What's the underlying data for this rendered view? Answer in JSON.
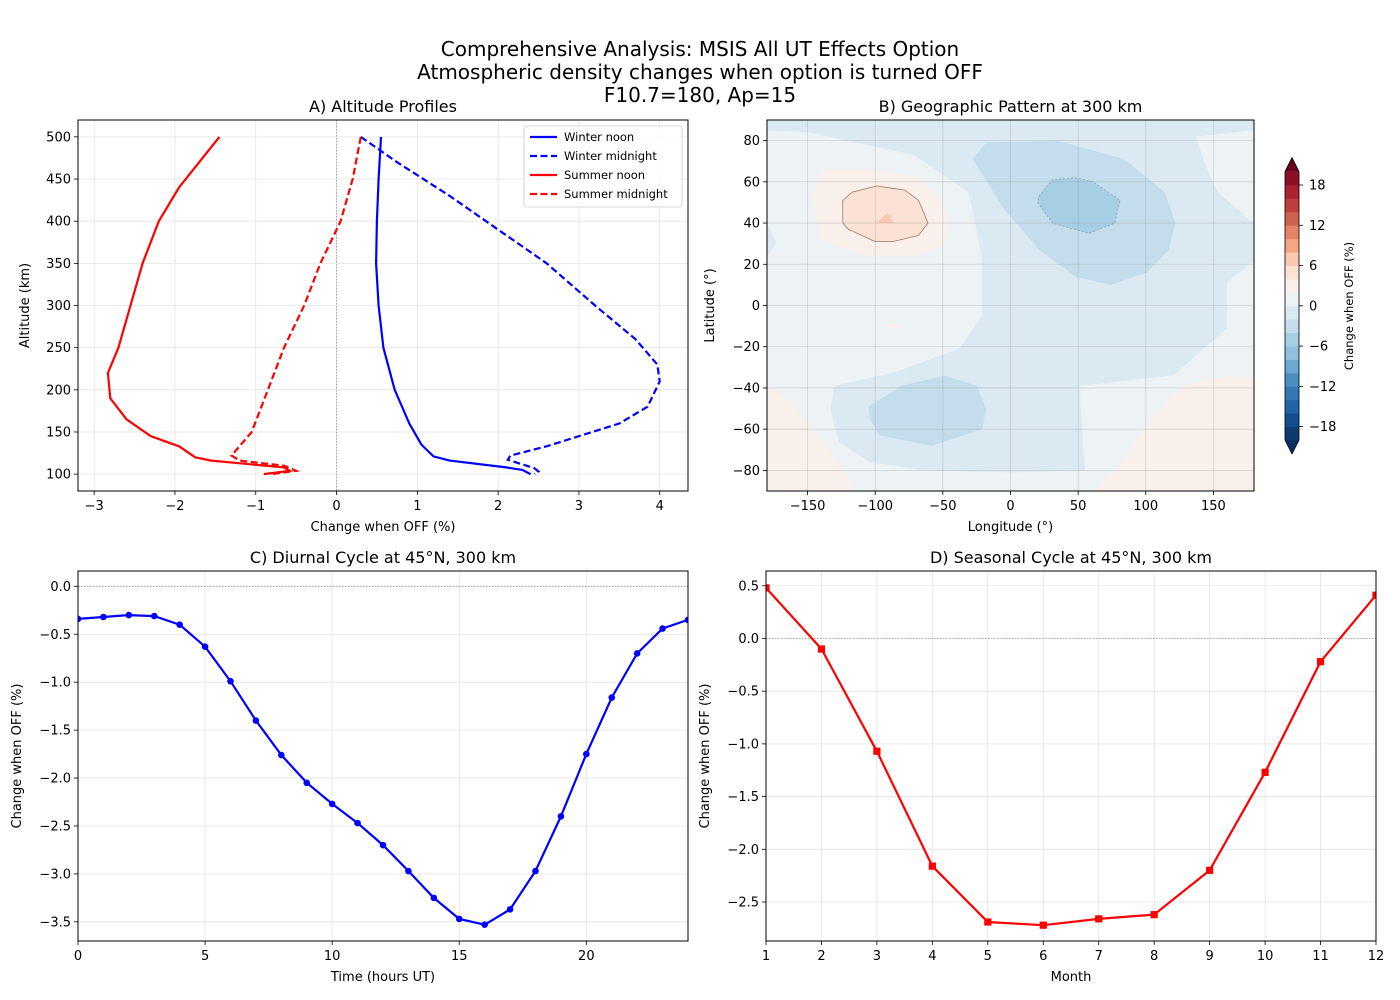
{
  "figure": {
    "title_lines": [
      "Comprehensive Analysis: MSIS All UT Effects Option",
      "Atmospheric density changes when option is turned OFF",
      "F10.7=180, Ap=15"
    ]
  },
  "chart_data": [
    {
      "type": "line",
      "title": "A) Altitude Profiles",
      "xlabel": "Change when OFF (%)",
      "ylabel": "Altitude (km)",
      "xlim": [
        -3.2,
        4.35
      ],
      "ylim": [
        80,
        520
      ],
      "xticks": [
        -3,
        -2,
        -1,
        0,
        1,
        2,
        3,
        4
      ],
      "xtick_labels": [
        "−3",
        "−2",
        "−1",
        "0",
        "1",
        "2",
        "3",
        "4"
      ],
      "yticks": [
        100,
        150,
        200,
        250,
        300,
        350,
        400,
        450,
        500
      ],
      "ytick_labels": [
        "100",
        "150",
        "200",
        "250",
        "300",
        "350",
        "400",
        "450",
        "500"
      ],
      "grid": true,
      "legend": "top-right",
      "reference_line": {
        "axis": "x",
        "value": 0
      },
      "series": [
        {
          "name": "Winter noon",
          "color": "#0000ff",
          "linestyle": "solid",
          "points": [
            [
              0.55,
              500
            ],
            [
              0.52,
              450
            ],
            [
              0.5,
              400
            ],
            [
              0.49,
              350
            ],
            [
              0.52,
              300
            ],
            [
              0.58,
              250
            ],
            [
              0.72,
              200
            ],
            [
              0.9,
              160
            ],
            [
              1.05,
              135
            ],
            [
              1.2,
              121
            ],
            [
              1.4,
              116
            ],
            [
              2.1,
              108
            ],
            [
              2.3,
              105
            ],
            [
              2.4,
              100
            ]
          ]
        },
        {
          "name": "Winter midnight",
          "color": "#0000ff",
          "linestyle": "dashed",
          "points": [
            [
              0.3,
              500
            ],
            [
              0.75,
              470
            ],
            [
              1.4,
              430
            ],
            [
              2.0,
              390
            ],
            [
              2.6,
              350
            ],
            [
              3.2,
              300
            ],
            [
              3.7,
              260
            ],
            [
              3.97,
              230
            ],
            [
              4.0,
              210
            ],
            [
              3.85,
              180
            ],
            [
              3.5,
              160
            ],
            [
              3.0,
              145
            ],
            [
              2.6,
              133
            ],
            [
              2.15,
              122
            ],
            [
              2.12,
              117
            ],
            [
              2.45,
              107
            ],
            [
              2.5,
              103
            ],
            [
              2.45,
              100
            ]
          ]
        },
        {
          "name": "Summer noon",
          "color": "#ff0000",
          "linestyle": "solid",
          "points": [
            [
              -1.45,
              500
            ],
            [
              -1.7,
              470
            ],
            [
              -1.95,
              440
            ],
            [
              -2.2,
              400
            ],
            [
              -2.4,
              350
            ],
            [
              -2.55,
              300
            ],
            [
              -2.7,
              250
            ],
            [
              -2.83,
              220
            ],
            [
              -2.8,
              190
            ],
            [
              -2.6,
              165
            ],
            [
              -2.3,
              145
            ],
            [
              -1.95,
              133
            ],
            [
              -1.75,
              120
            ],
            [
              -1.55,
              116
            ],
            [
              -0.65,
              108
            ],
            [
              -0.58,
              104
            ],
            [
              -0.9,
              100
            ]
          ]
        },
        {
          "name": "Summer midnight",
          "color": "#ff0000",
          "linestyle": "dashed",
          "points": [
            [
              0.3,
              500
            ],
            [
              0.2,
              450
            ],
            [
              0.05,
              400
            ],
            [
              -0.2,
              350
            ],
            [
              -0.4,
              300
            ],
            [
              -0.65,
              250
            ],
            [
              -0.85,
              200
            ],
            [
              -1.05,
              150
            ],
            [
              -1.3,
              122
            ],
            [
              -1.2,
              116
            ],
            [
              -0.65,
              110
            ],
            [
              -0.5,
              104
            ],
            [
              -0.8,
              100
            ]
          ]
        }
      ]
    },
    {
      "type": "contour",
      "title": "B) Geographic Pattern at 300 km",
      "xlabel": "Longitude (°)",
      "ylabel": "Latitude (°)",
      "xlim": [
        -180,
        180
      ],
      "ylim": [
        -90,
        90
      ],
      "xticks": [
        -150,
        -100,
        -50,
        0,
        50,
        100,
        150
      ],
      "xtick_labels": [
        "−150",
        "−100",
        "−50",
        "0",
        "50",
        "100",
        "150"
      ],
      "yticks": [
        -80,
        -60,
        -40,
        -20,
        0,
        20,
        40,
        60,
        80
      ],
      "ytick_labels": [
        "−80",
        "−60",
        "−40",
        "−20",
        "0",
        "20",
        "40",
        "60",
        "80"
      ],
      "grid": true,
      "base_level": [
        -2,
        0
      ],
      "regions": [
        {
          "level": [
            0,
            2
          ],
          "polygon": [
            [
              -180,
              85
            ],
            [
              -150,
              84
            ],
            [
              -71,
              73
            ],
            [
              -31,
              55
            ],
            [
              -21,
              23
            ],
            [
              -21,
              -5
            ],
            [
              -38,
              -21
            ],
            [
              -84,
              -32
            ],
            [
              -130,
              -39
            ],
            [
              -133,
              -50
            ],
            [
              -127,
              -66
            ],
            [
              -104,
              -76
            ],
            [
              -64,
              -80
            ],
            [
              2,
              -81
            ],
            [
              55,
              -80
            ],
            [
              51,
              -39
            ],
            [
              120,
              -34
            ],
            [
              160,
              -11
            ],
            [
              160,
              11
            ],
            [
              180,
              22
            ],
            [
              180,
              -90
            ],
            [
              -180,
              -90
            ]
          ]
        },
        {
          "level": [
            0,
            2
          ],
          "polygon": [
            [
              137,
              82
            ],
            [
              180,
              85
            ],
            [
              180,
              40
            ],
            [
              153,
              55
            ],
            [
              143,
              70
            ]
          ]
        },
        {
          "level": [
            -2,
            0
          ],
          "polygon": [
            [
              -180,
              40
            ],
            [
              -173,
              30
            ],
            [
              -180,
              24
            ]
          ]
        },
        {
          "level": [
            2,
            4
          ],
          "polygon": [
            [
              -180,
              -38
            ],
            [
              -163,
              -47
            ],
            [
              -143,
              -63
            ],
            [
              -120,
              -83
            ],
            [
              -117,
              -90
            ],
            [
              -180,
              -90
            ]
          ]
        },
        {
          "level": [
            2,
            4
          ],
          "polygon": [
            [
              61,
              -90
            ],
            [
              81,
              -77
            ],
            [
              101,
              -57
            ],
            [
              127,
              -39
            ],
            [
              160,
              -34
            ],
            [
              180,
              -35
            ],
            [
              180,
              -90
            ]
          ]
        },
        {
          "level": [
            -4,
            -2
          ],
          "polygon": [
            [
              -28,
              71
            ],
            [
              -18,
              79
            ],
            [
              35,
              80
            ],
            [
              84,
              71
            ],
            [
              114,
              55
            ],
            [
              122,
              40
            ],
            [
              117,
              27
            ],
            [
              101,
              16
            ],
            [
              74,
              10
            ],
            [
              48,
              14
            ],
            [
              21,
              27
            ],
            [
              -5,
              47
            ]
          ]
        },
        {
          "level": [
            -6,
            -4
          ],
          "contour_line": "dashed",
          "polygon": [
            [
              21,
              53
            ],
            [
              31,
              61
            ],
            [
              48,
              62
            ],
            [
              61,
              60
            ],
            [
              81,
              51
            ],
            [
              77,
              40
            ],
            [
              58,
              35
            ],
            [
              31,
              40
            ],
            [
              20,
              50
            ]
          ]
        },
        {
          "level": [
            -4,
            -2
          ],
          "polygon": [
            [
              -105,
              -49
            ],
            [
              -81,
              -39
            ],
            [
              -48,
              -34
            ],
            [
              -25,
              -39
            ],
            [
              -18,
              -50
            ],
            [
              -21,
              -60
            ],
            [
              -58,
              -68
            ],
            [
              -97,
              -63
            ],
            [
              -104,
              -55
            ]
          ]
        },
        {
          "level": [
            2,
            4
          ],
          "polygon": [
            [
              -147,
              53
            ],
            [
              -140,
              66
            ],
            [
              -107,
              66
            ],
            [
              -71,
              63
            ],
            [
              -51,
              51
            ],
            [
              -45,
              40
            ],
            [
              -51,
              29
            ],
            [
              -71,
              24
            ],
            [
              -107,
              24
            ],
            [
              -140,
              32
            ]
          ]
        },
        {
          "level": [
            4,
            6
          ],
          "contour_line": "solid",
          "polygon": [
            [
              -124,
              51
            ],
            [
              -117,
              55
            ],
            [
              -99,
              58
            ],
            [
              -78,
              56
            ],
            [
              -68,
              51
            ],
            [
              -61,
              40
            ],
            [
              -68,
              34
            ],
            [
              -87,
              31
            ],
            [
              -100,
              31
            ],
            [
              -120,
              37
            ],
            [
              -124,
              40
            ]
          ]
        },
        {
          "level": [
            6,
            8
          ],
          "polygon": [
            [
              -99,
              40
            ],
            [
              -91,
              45
            ],
            [
              -86,
              40
            ]
          ]
        },
        {
          "level": [
            2,
            4
          ],
          "polygon": [
            [
              -98,
              -10
            ],
            [
              -89,
              -9
            ],
            [
              -80,
              -10
            ],
            [
              -89,
              -11
            ]
          ]
        }
      ],
      "colorbar": {
        "label": "Change when OFF (%)",
        "range": [
          -20,
          20
        ],
        "step": 2,
        "extend": "both",
        "ticks": [
          -18,
          -12,
          -6,
          0,
          6,
          12,
          18
        ],
        "tick_labels": [
          "−18",
          "−12",
          "−6",
          "0",
          "6",
          "12",
          "18"
        ],
        "colors": [
          "#0b3b6f",
          "#134f8e",
          "#2164a6",
          "#3479b6",
          "#4a8fc2",
          "#6aa9d0",
          "#90c0dd",
          "#a6cee4",
          "#c3ddec",
          "#dbe9f2",
          "#edf2f5",
          "#f9efeb",
          "#fbe2d5",
          "#f8c8b0",
          "#f4a582",
          "#e38467",
          "#d1614f",
          "#c03f3d",
          "#ac2231",
          "#8e0d27"
        ],
        "under_color": "#053061",
        "over_color": "#67001f"
      }
    },
    {
      "type": "line",
      "title": "C) Diurnal Cycle at 45°N, 300 km",
      "xlabel": "Time (hours UT)",
      "ylabel": "Change when OFF (%)",
      "xlim": [
        0,
        24
      ],
      "ylim": [
        -3.7,
        0.16
      ],
      "xticks": [
        0,
        5,
        10,
        15,
        20
      ],
      "xtick_labels": [
        "0",
        "5",
        "10",
        "15",
        "20"
      ],
      "yticks": [
        0,
        -0.5,
        -1,
        -1.5,
        -2,
        -2.5,
        -3,
        -3.5
      ],
      "ytick_labels": [
        "0.0",
        "−0.5",
        "−1.0",
        "−1.5",
        "−2.0",
        "−2.5",
        "−3.0",
        "−3.5"
      ],
      "grid": true,
      "reference_line": {
        "axis": "y",
        "value": 0
      },
      "color": "#0000ff",
      "marker": "circle",
      "x": [
        0,
        1,
        2,
        3,
        4,
        5,
        6,
        7,
        8,
        9,
        10,
        11,
        12,
        13,
        14,
        15,
        16,
        17,
        18,
        19,
        20,
        21,
        22,
        23,
        24
      ],
      "y": [
        -0.34,
        -0.32,
        -0.3,
        -0.31,
        -0.4,
        -0.63,
        -0.99,
        -1.4,
        -1.76,
        -2.05,
        -2.27,
        -2.47,
        -2.7,
        -2.97,
        -3.25,
        -3.47,
        -3.53,
        -3.37,
        -2.97,
        -2.4,
        -1.75,
        -1.16,
        -0.7,
        -0.44,
        -0.35
      ]
    },
    {
      "type": "line",
      "title": "D) Seasonal Cycle at 45°N, 300 km",
      "xlabel": "Month",
      "ylabel": "Change when OFF (%)",
      "xlim": [
        1,
        12
      ],
      "ylim": [
        -2.87,
        0.64
      ],
      "xticks": [
        1,
        2,
        3,
        4,
        5,
        6,
        7,
        8,
        9,
        10,
        11,
        12
      ],
      "xtick_labels": [
        "1",
        "2",
        "3",
        "4",
        "5",
        "6",
        "7",
        "8",
        "9",
        "10",
        "11",
        "12"
      ],
      "yticks": [
        0.5,
        0,
        -0.5,
        -1,
        -1.5,
        -2,
        -2.5
      ],
      "ytick_labels": [
        "0.5",
        "0.0",
        "−0.5",
        "−1.0",
        "−1.5",
        "−2.0",
        "−2.5"
      ],
      "grid": true,
      "reference_line": {
        "axis": "y",
        "value": 0
      },
      "color": "#ff0000",
      "marker": "square",
      "x": [
        1,
        2,
        3,
        4,
        5,
        6,
        7,
        8,
        9,
        10,
        11,
        12
      ],
      "y": [
        0.48,
        -0.1,
        -1.07,
        -2.16,
        -2.69,
        -2.72,
        -2.66,
        -2.62,
        -2.2,
        -1.27,
        -0.22,
        0.41
      ]
    }
  ]
}
